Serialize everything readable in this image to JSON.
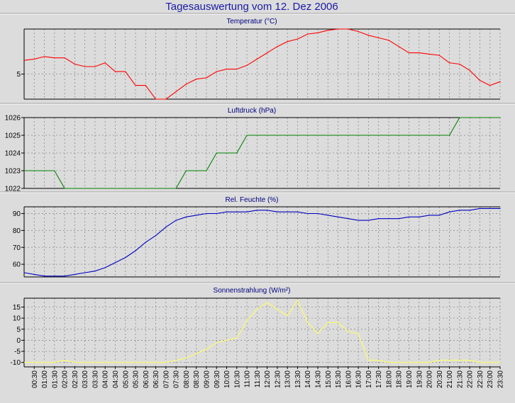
{
  "page_title": "Tagesauswertung vom 12. Dez 2006",
  "x_tick_labels": [
    "00:30",
    "01:00",
    "01:30",
    "02:00",
    "02:30",
    "03:00",
    "03:30",
    "04:00",
    "04:30",
    "05:00",
    "05:30",
    "06:00",
    "06:30",
    "07:00",
    "07:30",
    "08:00",
    "08:30",
    "09:00",
    "09:30",
    "10:00",
    "10:30",
    "11:00",
    "11:30",
    "12:00",
    "12:30",
    "13:00",
    "13:30",
    "14:00",
    "14:30",
    "15:00",
    "15:30",
    "16:00",
    "16:30",
    "17:00",
    "17:30",
    "18:00",
    "18:30",
    "19:00",
    "19:30",
    "20:00",
    "20:30",
    "21:00",
    "21:30",
    "22:00",
    "22:30",
    "23:00",
    "23:30"
  ],
  "colors": {
    "background": "#dcdcdc",
    "title": "#1a1aa6",
    "panel_title": "#000080",
    "temperature": "#ff0000",
    "pressure": "#008000",
    "humidity": "#0000c0",
    "radiation": "#ffff66"
  },
  "chart_data": [
    {
      "type": "line",
      "title": "Temperatur (°C)",
      "x_unit": "hours",
      "ylim": [
        3,
        8.6
      ],
      "yticks": [
        5
      ],
      "grid": true,
      "series": [
        {
          "color": "#ff0000",
          "x": [
            0,
            0.5,
            1,
            1.5,
            2,
            2.5,
            3,
            3.5,
            4,
            4.5,
            5,
            5.5,
            6,
            6.5,
            7,
            7.5,
            8,
            8.5,
            9,
            9.5,
            10,
            10.5,
            11,
            11.5,
            12,
            12.5,
            13,
            13.5,
            14,
            14.5,
            15,
            15.5,
            16,
            16.5,
            17,
            17.5,
            18,
            18.5,
            19,
            19.5,
            20,
            20.5,
            21,
            21.5,
            22,
            22.5,
            23,
            23.5
          ],
          "values": [
            6.1,
            6.2,
            6.4,
            6.3,
            6.3,
            5.8,
            5.6,
            5.6,
            5.9,
            5.2,
            5.2,
            4.1,
            4.1,
            3.0,
            3.0,
            3.6,
            4.2,
            4.6,
            4.7,
            5.2,
            5.4,
            5.4,
            5.7,
            6.2,
            6.7,
            7.2,
            7.6,
            7.8,
            8.2,
            8.3,
            8.5,
            8.6,
            8.6,
            8.4,
            8.1,
            7.9,
            7.7,
            7.2,
            6.7,
            6.7,
            6.6,
            6.5,
            5.9,
            5.8,
            5.3,
            4.5,
            4.1,
            4.4
          ]
        }
      ]
    },
    {
      "type": "line",
      "title": "Luftdruck (hPa)",
      "x_unit": "hours",
      "ylim": [
        1022,
        1026
      ],
      "yticks": [
        1022,
        1023,
        1024,
        1025,
        1026
      ],
      "grid": true,
      "series": [
        {
          "color": "#008000",
          "x": [
            0,
            0.5,
            1,
            1.5,
            2,
            2.5,
            3,
            3.5,
            4,
            4.5,
            5,
            5.5,
            6,
            6.5,
            7,
            7.5,
            8,
            8.5,
            9,
            9.5,
            10,
            10.5,
            11,
            11.5,
            12,
            12.5,
            13,
            13.5,
            14,
            14.5,
            15,
            15.5,
            16,
            16.5,
            17,
            17.5,
            18,
            18.5,
            19,
            19.5,
            20,
            20.5,
            21,
            21.5,
            22,
            22.5,
            23,
            23.5
          ],
          "values": [
            1023,
            1023,
            1023,
            1023,
            1022,
            1022,
            1022,
            1022,
            1022,
            1022,
            1022,
            1022,
            1022,
            1022,
            1022,
            1022,
            1023,
            1023,
            1023,
            1024,
            1024,
            1024,
            1025,
            1025,
            1025,
            1025,
            1025,
            1025,
            1025,
            1025,
            1025,
            1025,
            1025,
            1025,
            1025,
            1025,
            1025,
            1025,
            1025,
            1025,
            1025,
            1025,
            1025,
            1026,
            1026,
            1026,
            1026,
            1026
          ]
        }
      ]
    },
    {
      "type": "line",
      "title": "Rel. Feuchte (%)",
      "x_unit": "hours",
      "ylim": [
        52.5,
        94
      ],
      "yticks": [
        60,
        70,
        80,
        90
      ],
      "grid": true,
      "series": [
        {
          "color": "#0000c0",
          "x": [
            0,
            0.5,
            1,
            1.5,
            2,
            2.5,
            3,
            3.5,
            4,
            4.5,
            5,
            5.5,
            6,
            6.5,
            7,
            7.5,
            8,
            8.5,
            9,
            9.5,
            10,
            10.5,
            11,
            11.5,
            12,
            12.5,
            13,
            13.5,
            14,
            14.5,
            15,
            15.5,
            16,
            16.5,
            17,
            17.5,
            18,
            18.5,
            19,
            19.5,
            20,
            20.5,
            21,
            21.5,
            22,
            22.5,
            23,
            23.5
          ],
          "values": [
            55,
            54,
            53,
            53,
            53,
            54,
            55,
            56,
            58,
            61,
            64,
            68,
            73,
            77,
            82,
            86,
            88,
            89,
            90,
            90,
            91,
            91,
            91,
            92,
            92,
            91,
            91,
            91,
            90,
            90,
            89,
            88,
            87,
            86,
            86,
            87,
            87,
            87,
            88,
            88,
            89,
            89,
            91,
            92,
            92,
            93,
            93,
            93
          ]
        }
      ]
    },
    {
      "type": "line",
      "title": "Sonnenstrahlung (W/m²)",
      "x_unit": "hours",
      "ylim": [
        -12,
        19
      ],
      "yticks": [
        -10,
        -5,
        0,
        5,
        10,
        15
      ],
      "grid": true,
      "series": [
        {
          "color": "#ffff66",
          "x": [
            0,
            0.5,
            1,
            1.5,
            2,
            2.5,
            3,
            3.5,
            4,
            4.5,
            5,
            5.5,
            6,
            6.5,
            7,
            7.5,
            8,
            8.5,
            9,
            9.5,
            10,
            10.5,
            11,
            11.5,
            12,
            12.5,
            13,
            13.5,
            14,
            14.5,
            15,
            15.5,
            16,
            16.5,
            17,
            17.5,
            18,
            18.5,
            19,
            19.5,
            20,
            20.5,
            21,
            21.5,
            22,
            22.5,
            23,
            23.5
          ],
          "values": [
            -10,
            -10,
            -10,
            -10,
            -9,
            -10,
            -10,
            -10,
            -10,
            -10,
            -10,
            -10,
            -10,
            -10,
            -10,
            -9,
            -8,
            -6,
            -4,
            -1,
            0,
            1,
            9,
            14,
            17,
            14,
            11,
            18,
            8,
            3,
            8,
            8,
            4,
            3,
            -9,
            -9,
            -10,
            -10,
            -10,
            -10,
            -10,
            -9,
            -9,
            -9,
            -9,
            -10,
            -10,
            -10
          ]
        }
      ]
    }
  ]
}
